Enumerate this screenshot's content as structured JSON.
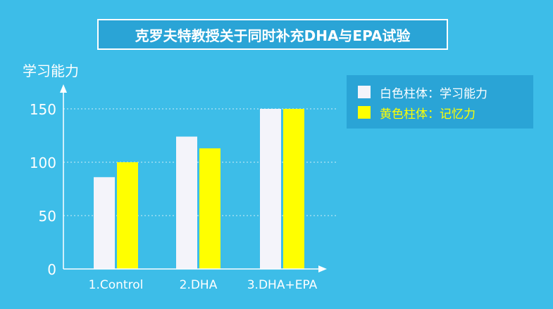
{
  "title": "克罗夫特教授关于同时补充DHA与EPA试验",
  "colors": {
    "background": "#3dbde8",
    "panel": "#2aa4d6",
    "series_white": "#f4f4fa",
    "series_yellow": "#ffff00",
    "axis": "#ffffff"
  },
  "legend": {
    "items": [
      {
        "label": "白色柱体：学习能力",
        "color": "#f4f4fa",
        "text_color": "#ffffff"
      },
      {
        "label": "黄色柱体：记忆力",
        "color": "#ffff00",
        "text_color": "#ffff00"
      }
    ]
  },
  "chart_data": {
    "type": "bar",
    "title": "克罗夫特教授关于同时补充DHA与EPA试验",
    "ylabel": "学习能力",
    "xlabel": "",
    "categories": [
      "1.Control",
      "2.DHA",
      "3.DHA+EPA"
    ],
    "yticks": [
      0,
      50,
      100,
      150
    ],
    "ylim": [
      0,
      150
    ],
    "grid": "dotted horizontal lines at 50, 100, 150",
    "legend_position": "top-right",
    "series": [
      {
        "name": "白色柱体：学习能力",
        "color": "#f4f4fa",
        "values": [
          86,
          124,
          150
        ]
      },
      {
        "name": "黄色柱体：记忆力",
        "color": "#ffff00",
        "values": [
          100,
          113,
          150
        ]
      }
    ]
  }
}
